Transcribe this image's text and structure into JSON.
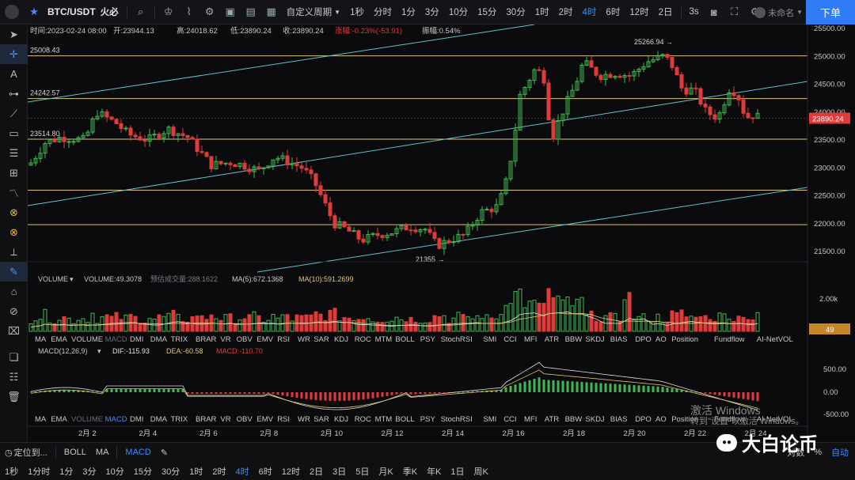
{
  "toolbar": {
    "symbol": "BTC/USDT",
    "exchange": "火必",
    "period_menu": "自定义周期",
    "periods": [
      "1秒",
      "分时",
      "1分",
      "3分",
      "10分",
      "15分",
      "30分",
      "1时",
      "2时",
      "4时",
      "6时",
      "12时",
      "2日"
    ],
    "active_period": "4时",
    "extra_period": "3s",
    "account_label": "未命名",
    "order_button": "下单"
  },
  "info_bar": {
    "time": "时间:2023-02-24 08:00",
    "open": "开:23944.13",
    "high": "高:24018.62",
    "low": "低:23890.24",
    "close": "收:23890.24",
    "change": "涨幅:-0.23%(-53.91)",
    "amplitude": "振幅:0.54%"
  },
  "price_chart": {
    "levels": [
      {
        "label": "25008.43",
        "price": 25008.43,
        "color": "#d9c47a"
      },
      {
        "label": "24242.57",
        "price": 24242.57,
        "color": "#d9c47a"
      },
      {
        "label": "23514.80",
        "price": 23514.8,
        "color": "#d9c47a"
      },
      {
        "label": "",
        "price": 22600,
        "color": "#d9c47a"
      },
      {
        "label": "",
        "price": 21980,
        "color": "#d9c47a"
      }
    ],
    "axis_ticks": [
      "25500.00",
      "25000.00",
      "24500.00",
      "24000.00",
      "23500.00",
      "23000.00",
      "22500.00",
      "22000.00",
      "21500.00"
    ],
    "last_price": "23890.24",
    "high_annotation": "25266.94 →",
    "low_annotation": "21355 →",
    "colors": {
      "up": "#3fb950",
      "down": "#e03b3b",
      "channel": "#5fc3c9",
      "levels": "#d9c47a"
    }
  },
  "volume_panel": {
    "selector": "VOLUME",
    "value": "VOLUME:49.3078",
    "estimate": "预估成交量:288.1622",
    "ma5": "MA(5):672.1368",
    "ma10": "MA(10):591.2699",
    "axis_tick": "2.00k",
    "last_value": "49"
  },
  "indicator_tabs_1": [
    "MA",
    "EMA",
    "VOLUME",
    "MACD",
    "DMI",
    "DMA",
    "TRIX",
    "BRAR",
    "VR",
    "OBV",
    "EMV",
    "RSI",
    "WR",
    "SAR",
    "KDJ",
    "ROC",
    "MTM",
    "BOLL",
    "PSY",
    "StochRSI",
    "SMI",
    "CCI",
    "MFI",
    "ATR",
    "BBW",
    "SKDJ",
    "BIAS",
    "DPO",
    "AO",
    "Position",
    "Fundflow",
    "AI-NetVOL"
  ],
  "indicator_tabs_2": [
    "MA",
    "EMA",
    "VOLUME",
    "MACD",
    "DMI",
    "DMA",
    "TRIX",
    "BRAR",
    "VR",
    "OBV",
    "EMV",
    "RSI",
    "WR",
    "SAR",
    "KDJ",
    "ROC",
    "MTM",
    "BOLL",
    "PSY",
    "StochRSI",
    "SMI",
    "CCI",
    "MFI",
    "ATR",
    "BBW",
    "SKDJ",
    "BIAS",
    "DPO",
    "AO",
    "Position",
    "Fundflow",
    "AI-NetVOL"
  ],
  "macd_panel": {
    "label": "MACD(12,26,9)",
    "dif": "DIF:-115.93",
    "dea": "DEA:-60.58",
    "macd": "MACD:-110.70",
    "axis_ticks": [
      "500.00",
      "0.00",
      "-500.00"
    ]
  },
  "date_axis": [
    "2月 2",
    "2月 4",
    "2月 6",
    "2月 8",
    "2月 10",
    "2月 12",
    "2月 14",
    "2月 16",
    "2月 18",
    "2月 20",
    "2月 22",
    "2月 24"
  ],
  "bottom_bar": {
    "locate": "定位到...",
    "indicators": [
      "BOLL",
      "MA"
    ],
    "macd": "MACD",
    "periods": [
      "1秒",
      "1分时",
      "1分",
      "3分",
      "10分",
      "15分",
      "30分",
      "1时",
      "2时",
      "4时",
      "6时",
      "12时",
      "2日",
      "3日",
      "5日",
      "月K",
      "季K",
      "年K",
      "1日",
      "周K"
    ],
    "active_period": "4时",
    "right_items": [
      "对数",
      "%",
      "自动"
    ]
  },
  "watermark": {
    "text": "大白论币",
    "icon": "wechat-icon",
    "activation_line1": "激活 Windows",
    "activation_line2": "转到\"设置\"以激活 Windows。"
  }
}
